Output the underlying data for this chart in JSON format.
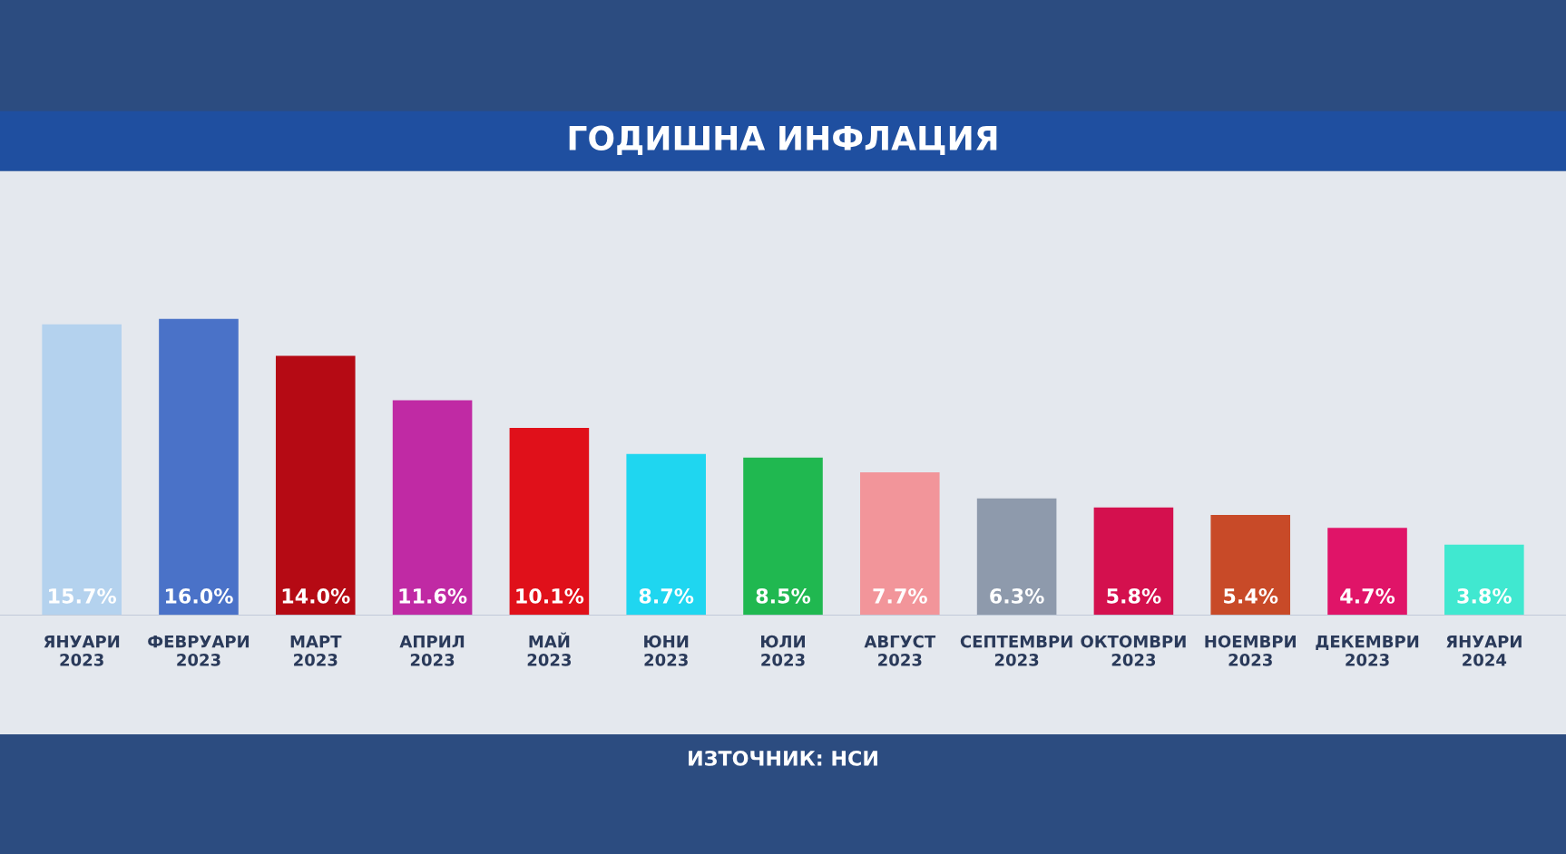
{
  "chart_data": {
    "type": "bar",
    "title": "ГОДИШНА ИНФЛАЦИЯ",
    "categories": [
      "ЯНУАРИ\n2023",
      "ФЕВРУАРИ\n2023",
      "МАРТ\n2023",
      "АПРИЛ\n2023",
      "МАЙ\n2023",
      "ЮНИ\n2023",
      "ЮЛИ\n2023",
      "АВГУСТ\n2023",
      "СЕПТЕМВРИ\n2023",
      "ОКТОМВРИ\n2023",
      "НОЕМВРИ\n2023",
      "ДЕКЕМВРИ\n2023",
      "ЯНУАРИ\n2024"
    ],
    "values": [
      15.7,
      16.0,
      14.0,
      11.6,
      10.1,
      8.7,
      8.5,
      7.7,
      6.3,
      5.8,
      5.4,
      4.7,
      3.8
    ],
    "value_labels": [
      "15.7%",
      "16.0%",
      "14.0%",
      "11.6%",
      "10.1%",
      "8.7%",
      "8.5%",
      "7.7%",
      "6.3%",
      "5.8%",
      "5.4%",
      "4.7%",
      "3.8%"
    ],
    "colors": [
      "#b4d2ee",
      "#4a72c8",
      "#b50a14",
      "#c02aa4",
      "#e0101a",
      "#1fd6f0",
      "#20b850",
      "#f2959a",
      "#8e9aac",
      "#d4104e",
      "#c84a28",
      "#e01468",
      "#40e8d0"
    ],
    "annotations": [
      "ИЗТОЧНИК: НСИ"
    ],
    "ylim": [
      0,
      24
    ]
  }
}
